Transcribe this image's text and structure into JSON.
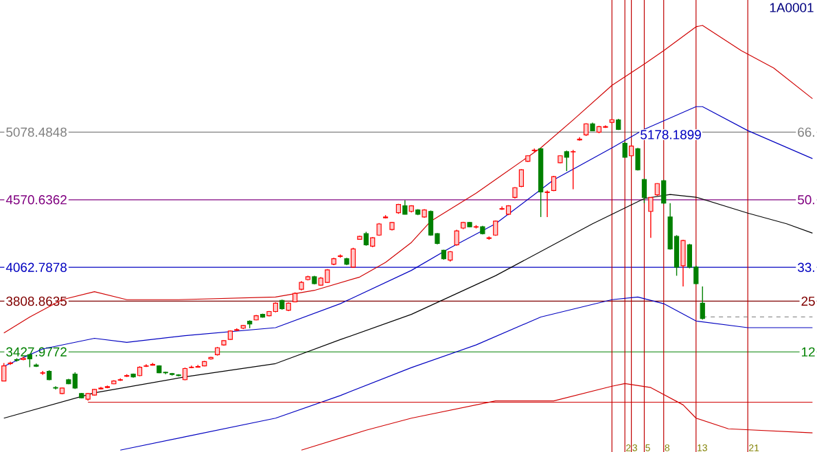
{
  "chart_data": {
    "type": "candlestick",
    "title": "1A0001",
    "categories": [
      null,
      null,
      null,
      null,
      null,
      null,
      null,
      null,
      null,
      null,
      null,
      null,
      null,
      null,
      null,
      null,
      null,
      null,
      null,
      null,
      null,
      null,
      null,
      null,
      null,
      null,
      null,
      null,
      null,
      null,
      null,
      null,
      null,
      null,
      null,
      null,
      null,
      null,
      null,
      null,
      null,
      null,
      null,
      null,
      null,
      null,
      null,
      null,
      null,
      null,
      null,
      null,
      null,
      null,
      null,
      null,
      null,
      null,
      null,
      null,
      null,
      null,
      null,
      null,
      null,
      null,
      null,
      null,
      null,
      null,
      null,
      null,
      null,
      null,
      null,
      null,
      null,
      null,
      null,
      null,
      null,
      null,
      null,
      null,
      null,
      null,
      null,
      null,
      null,
      null,
      null,
      null,
      null,
      null,
      null,
      null,
      null,
      null,
      null,
      null,
      null,
      null,
      null,
      null,
      null,
      null,
      null,
      null,
      null,
      null,
      null,
      null,
      null,
      null,
      null,
      null,
      null,
      null,
      null,
      null,
      null,
      null,
      null,
      null,
      null,
      null
    ],
    "ohlc": [
      [
        3209,
        3344,
        3209,
        3323
      ],
      [
        3340,
        3355,
        3330,
        3344
      ],
      [
        3370,
        3380,
        3355,
        3365
      ],
      [
        3370,
        3390,
        3365,
        3380
      ],
      [
        3407,
        3415,
        3313,
        3376
      ],
      [
        3330,
        3340,
        3315,
        3320
      ],
      [
        3268,
        3285,
        3255,
        3271
      ],
      [
        3282,
        3290,
        3215,
        3219
      ],
      [
        3160,
        3170,
        3145,
        3156
      ],
      [
        3115,
        3160,
        3110,
        3156
      ],
      [
        3219,
        3225,
        3185,
        3188
      ],
      [
        3261,
        3275,
        3150,
        3156
      ],
      [
        3115,
        3120,
        3080,
        3083
      ],
      [
        3073,
        3120,
        3062,
        3115
      ],
      [
        3104,
        3150,
        3100,
        3146
      ],
      [
        3150,
        3165,
        3145,
        3156
      ],
      [
        3160,
        3175,
        3155,
        3167
      ],
      [
        3188,
        3215,
        3185,
        3209
      ],
      [
        3215,
        3230,
        3210,
        3219
      ],
      [
        3245,
        3260,
        3240,
        3250
      ],
      [
        3261,
        3265,
        3235,
        3240
      ],
      [
        3250,
        3320,
        3245,
        3313
      ],
      [
        3320,
        3335,
        3315,
        3323
      ],
      [
        3328,
        3345,
        3325,
        3334
      ],
      [
        3323,
        3328,
        3268,
        3271
      ],
      [
        3275,
        3280,
        3260,
        3271
      ],
      [
        3265,
        3270,
        3250,
        3258
      ],
      [
        3255,
        3260,
        3245,
        3250
      ],
      [
        3219,
        3310,
        3215,
        3303
      ],
      [
        3310,
        3325,
        3305,
        3313
      ],
      [
        3313,
        3330,
        3310,
        3318
      ],
      [
        3323,
        3360,
        3320,
        3355
      ],
      [
        3375,
        3390,
        3370,
        3386
      ],
      [
        3407,
        3465,
        3400,
        3459
      ],
      [
        3480,
        3515,
        3475,
        3512
      ],
      [
        3522,
        3590,
        3518,
        3585
      ],
      [
        3590,
        3605,
        3585,
        3595
      ],
      [
        3606,
        3630,
        3600,
        3626
      ],
      [
        3658,
        3665,
        3606,
        3637
      ],
      [
        3668,
        3705,
        3665,
        3700
      ],
      [
        3710,
        3715,
        3685,
        3689
      ],
      [
        3700,
        3735,
        3695,
        3731
      ],
      [
        3731,
        3800,
        3725,
        3794
      ],
      [
        3815,
        3820,
        3745,
        3752
      ],
      [
        3741,
        3800,
        3735,
        3794
      ],
      [
        3804,
        3875,
        3800,
        3867
      ],
      [
        3898,
        3960,
        3890,
        3950
      ],
      [
        3971,
        4000,
        3965,
        3992
      ],
      [
        3992,
        4000,
        3935,
        3940
      ],
      [
        3929,
        3990,
        3925,
        3982
      ],
      [
        3950,
        4050,
        3945,
        4044
      ],
      [
        4086,
        4135,
        4080,
        4128
      ],
      [
        4145,
        4160,
        4135,
        4149
      ],
      [
        4128,
        4135,
        4080,
        4086
      ],
      [
        4065,
        4210,
        4060,
        4201
      ],
      [
        4274,
        4300,
        4270,
        4295
      ],
      [
        4316,
        4330,
        4225,
        4232
      ],
      [
        4222,
        4290,
        4215,
        4285
      ],
      [
        4305,
        4395,
        4300,
        4389
      ],
      [
        4435,
        4455,
        4430,
        4441
      ],
      [
        4347,
        4405,
        4340,
        4400
      ],
      [
        4473,
        4540,
        4465,
        4535
      ],
      [
        4525,
        4567,
        4460,
        4462
      ],
      [
        4483,
        4530,
        4475,
        4525
      ],
      [
        4494,
        4500,
        4455,
        4462
      ],
      [
        4441,
        4500,
        4435,
        4494
      ],
      [
        4483,
        4490,
        4300,
        4305
      ],
      [
        4316,
        4320,
        4235,
        4243
      ],
      [
        4191,
        4195,
        4120,
        4128
      ],
      [
        4117,
        4185,
        4107,
        4180
      ],
      [
        4232,
        4345,
        4225,
        4337
      ],
      [
        4358,
        4405,
        4350,
        4400
      ],
      [
        4400,
        4405,
        4365,
        4368
      ],
      [
        4365,
        4380,
        4355,
        4368
      ],
      [
        4368,
        4375,
        4310,
        4316
      ],
      [
        4280,
        4295,
        4270,
        4285
      ],
      [
        4305,
        4415,
        4300,
        4410
      ],
      [
        4500,
        4520,
        4495,
        4504
      ],
      [
        4462,
        4530,
        4455,
        4525
      ],
      [
        4588,
        4665,
        4580,
        4661
      ],
      [
        4671,
        4800,
        4665,
        4796
      ],
      [
        4859,
        4905,
        4855,
        4901
      ],
      [
        4940,
        4955,
        4930,
        4943
      ],
      [
        4953,
        4960,
        4441,
        4629
      ],
      [
        4625,
        4640,
        4441,
        4629
      ],
      [
        4640,
        4750,
        4635,
        4744
      ],
      [
        4849,
        4905,
        4845,
        4901
      ],
      [
        4932,
        4940,
        4786,
        4890
      ],
      [
        4930,
        4945,
        4650,
        4932
      ],
      [
        5020,
        5040,
        5015,
        5026
      ],
      [
        5058,
        5145,
        5050,
        5141
      ],
      [
        5141,
        5150,
        5085,
        5089
      ],
      [
        5078,
        5125,
        5070,
        5120
      ],
      [
        5115,
        5130,
        5110,
        5120
      ],
      [
        5152,
        5175,
        5145,
        5172
      ],
      [
        5170,
        5178.1899,
        5095,
        5099
      ],
      [
        4995,
        5005,
        4885,
        4890
      ],
      [
        4901,
        4980,
        4895,
        4974
      ],
      [
        4953,
        4960,
        4790,
        4796
      ],
      [
        4723,
        4730,
        4546,
        4588
      ],
      [
        4483,
        4590,
        4285,
        4588
      ],
      [
        4608,
        4695,
        4600,
        4692
      ],
      [
        4713,
        4720,
        4540,
        4546
      ],
      [
        4441,
        4545,
        4195,
        4201
      ],
      [
        4295,
        4305,
        4000,
        4065
      ],
      [
        4075,
        4270,
        3920,
        4264
      ],
      [
        4232,
        4240,
        4055,
        4065
      ],
      [
        4065,
        4075,
        3935,
        3940
      ],
      [
        3794,
        3919,
        3670,
        3679
      ],
      null,
      null,
      null,
      null,
      null,
      null,
      null,
      null,
      null,
      null,
      null,
      null,
      null,
      null,
      null,
      null,
      null
    ],
    "series": [
      {
        "type": "line",
        "color": "#d00000",
        "values": [
          3570,
          null,
          null,
          null,
          3690,
          null,
          null,
          null,
          null,
          3820,
          null,
          null,
          null,
          null,
          3880,
          null,
          null,
          null,
          null,
          3820,
          null,
          null,
          null,
          null,
          null,
          null,
          null,
          3820,
          null,
          null,
          null,
          null,
          null,
          null,
          null,
          null,
          null,
          null,
          null,
          null,
          null,
          null,
          3840,
          null,
          null,
          null,
          null,
          null,
          3890,
          null,
          null,
          null,
          null,
          null,
          null,
          3990,
          null,
          null,
          null,
          4100,
          null,
          null,
          null,
          4250,
          null,
          null,
          4410,
          null,
          null,
          null,
          null,
          null,
          null,
          4620,
          null,
          null,
          null,
          null,
          null,
          null,
          null,
          null,
          null,
          4960,
          null,
          null,
          null,
          null,
          5170,
          null,
          null,
          null,
          null,
          null,
          5430,
          null,
          null,
          null,
          null,
          5590,
          null,
          null,
          5690,
          null,
          null,
          null,
          null,
          5870,
          5880,
          null,
          null,
          null,
          null,
          null,
          5690,
          null,
          null,
          null,
          null,
          5560,
          null,
          null,
          null,
          null,
          null,
          5330
        ]
      },
      {
        "type": "line",
        "color": "#0000c0",
        "values": [
          3320,
          null,
          null,
          null,
          null,
          null,
          3450,
          null,
          null,
          null,
          null,
          null,
          null,
          null,
          3530,
          null,
          null,
          null,
          null,
          3500,
          null,
          null,
          null,
          null,
          null,
          null,
          null,
          null,
          3550,
          null,
          null,
          null,
          null,
          null,
          null,
          null,
          null,
          null,
          null,
          null,
          null,
          null,
          3610,
          null,
          null,
          null,
          null,
          null,
          null,
          null,
          null,
          null,
          3790,
          null,
          null,
          null,
          null,
          null,
          null,
          null,
          null,
          null,
          null,
          4040,
          null,
          null,
          null,
          null,
          null,
          4210,
          null,
          null,
          null,
          null,
          null,
          null,
          4390,
          null,
          null,
          null,
          null,
          null,
          null,
          null,
          null,
          4720,
          null,
          null,
          null,
          null,
          null,
          null,
          null,
          null,
          4960,
          null,
          null,
          null,
          null,
          5100,
          null,
          null,
          null,
          null,
          null,
          null,
          null,
          5270,
          5270,
          null,
          null,
          null,
          null,
          null,
          null,
          5090,
          null,
          null,
          null,
          null,
          null,
          null,
          null,
          null,
          null,
          4880
        ]
      },
      {
        "type": "line",
        "color": "#000000",
        "values": [
          2930,
          null,
          null,
          null,
          null,
          null,
          null,
          null,
          null,
          null,
          null,
          null,
          null,
          null,
          3120,
          null,
          null,
          null,
          null,
          null,
          null,
          null,
          null,
          null,
          null,
          null,
          null,
          null,
          3240,
          null,
          null,
          null,
          null,
          null,
          null,
          null,
          null,
          null,
          null,
          null,
          null,
          null,
          3340,
          null,
          null,
          null,
          null,
          null,
          null,
          null,
          null,
          null,
          3520,
          null,
          null,
          null,
          null,
          null,
          null,
          null,
          null,
          null,
          null,
          3710,
          null,
          null,
          null,
          null,
          null,
          null,
          null,
          null,
          null,
          null,
          null,
          null,
          4000,
          null,
          null,
          null,
          null,
          null,
          null,
          null,
          null,
          null,
          null,
          null,
          null,
          null,
          null,
          4390,
          null,
          null,
          null,
          null,
          null,
          null,
          null,
          4580,
          null,
          null,
          null,
          4610,
          null,
          null,
          null,
          4590,
          null,
          null,
          null,
          null,
          null,
          null,
          null,
          4470,
          null,
          null,
          null,
          null,
          null,
          4390,
          null,
          null,
          null,
          4320
        ]
      },
      {
        "type": "line",
        "color": "#0000c0",
        "values": [
          null,
          null,
          null,
          null,
          null,
          null,
          null,
          null,
          null,
          null,
          null,
          null,
          null,
          null,
          null,
          null,
          null,
          null,
          2690,
          null,
          null,
          null,
          null,
          null,
          null,
          null,
          null,
          null,
          2790,
          null,
          null,
          null,
          null,
          null,
          null,
          null,
          null,
          null,
          null,
          null,
          null,
          null,
          2930,
          null,
          null,
          null,
          null,
          null,
          null,
          null,
          null,
          null,
          3100,
          null,
          null,
          null,
          null,
          null,
          null,
          null,
          null,
          null,
          null,
          3310,
          null,
          null,
          null,
          null,
          null,
          null,
          null,
          null,
          null,
          3480,
          null,
          null,
          null,
          null,
          null,
          null,
          null,
          null,
          null,
          3690,
          null,
          null,
          null,
          null,
          null,
          null,
          null,
          null,
          null,
          null,
          3820,
          null,
          null,
          null,
          3840,
          null,
          null,
          null,
          3790,
          null,
          null,
          null,
          null,
          3660,
          null,
          null,
          null,
          null,
          null,
          null,
          null,
          3610,
          null,
          null,
          null,
          null,
          null,
          null,
          null,
          null,
          null,
          3610
        ]
      },
      {
        "type": "line",
        "color": "#d00000",
        "values": [
          null,
          null,
          null,
          null,
          null,
          null,
          null,
          null,
          null,
          null,
          null,
          null,
          null,
          null,
          null,
          null,
          null,
          null,
          null,
          null,
          null,
          null,
          null,
          null,
          null,
          null,
          null,
          null,
          null,
          null,
          null,
          null,
          null,
          null,
          null,
          null,
          null,
          null,
          null,
          null,
          null,
          null,
          null,
          null,
          null,
          null,
          2690,
          null,
          null,
          null,
          null,
          null,
          null,
          null,
          null,
          null,
          2840,
          null,
          null,
          null,
          null,
          null,
          null,
          2930,
          null,
          null,
          null,
          null,
          null,
          null,
          null,
          null,
          null,
          null,
          null,
          null,
          3060,
          null,
          null,
          null,
          null,
          null,
          null,
          null,
          null,
          3060,
          null,
          null,
          null,
          null,
          null,
          null,
          null,
          null,
          3170,
          null,
          3190,
          null,
          null,
          null,
          3160,
          null,
          null,
          null,
          null,
          3030,
          null,
          2930,
          null,
          null,
          null,
          null,
          2850,
          null,
          null,
          null,
          null,
          null,
          null,
          null,
          null,
          null,
          null,
          null,
          null,
          2820
        ]
      },
      {
        "type": "line",
        "color": "#d00000",
        "values": [
          null,
          null,
          null,
          null,
          null,
          null,
          null,
          null,
          null,
          null,
          null,
          null,
          null,
          3050,
          null,
          null,
          null,
          null,
          null,
          null,
          null,
          null,
          null,
          null,
          null,
          null,
          null,
          null,
          null,
          null,
          null,
          null,
          null,
          null,
          null,
          null,
          null,
          null,
          null,
          null,
          null,
          null,
          null,
          null,
          null,
          null,
          null,
          null,
          null,
          null,
          null,
          null,
          null,
          null,
          null,
          null,
          null,
          null,
          null,
          null,
          null,
          null,
          null,
          null,
          null,
          null,
          null,
          null,
          null,
          null,
          null,
          null,
          null,
          null,
          null,
          null,
          null,
          null,
          null,
          null,
          null,
          null,
          null,
          null,
          null,
          null,
          null,
          null,
          null,
          null,
          null,
          null,
          null,
          null,
          null,
          null,
          null,
          null,
          null,
          null,
          null,
          null,
          null,
          null,
          null,
          null,
          null,
          null,
          null,
          null,
          null,
          null,
          null,
          null,
          null,
          null,
          null,
          null,
          null,
          null,
          null,
          null,
          null,
          null,
          null,
          3050
        ]
      },
      {
        "type": "line",
        "color": "#909090",
        "line_style": "dashed",
        "values": [
          null,
          null,
          null,
          null,
          null,
          null,
          null,
          null,
          null,
          null,
          null,
          null,
          null,
          null,
          null,
          null,
          null,
          null,
          null,
          null,
          null,
          null,
          null,
          null,
          null,
          null,
          null,
          null,
          null,
          null,
          null,
          null,
          null,
          null,
          null,
          null,
          null,
          null,
          null,
          null,
          null,
          null,
          null,
          null,
          null,
          null,
          null,
          null,
          null,
          null,
          null,
          null,
          null,
          null,
          null,
          null,
          null,
          null,
          null,
          null,
          null,
          null,
          null,
          null,
          null,
          null,
          null,
          null,
          null,
          null,
          null,
          null,
          null,
          null,
          null,
          null,
          null,
          null,
          null,
          null,
          null,
          null,
          null,
          null,
          null,
          null,
          null,
          null,
          null,
          null,
          null,
          null,
          null,
          null,
          null,
          null,
          null,
          null,
          null,
          null,
          null,
          null,
          null,
          null,
          null,
          null,
          null,
          null,
          3690,
          null,
          null,
          null,
          null,
          null,
          null,
          null,
          null,
          null,
          null,
          null,
          null,
          null,
          null,
          null,
          null,
          3690
        ]
      }
    ],
    "ref_lines": [
      {
        "axis": "y",
        "value": 5078.4848,
        "color": "#808080"
      },
      {
        "axis": "y",
        "value": 4570.6362,
        "color": "#800080"
      },
      {
        "axis": "y",
        "value": 4062.7878,
        "color": "#0000c0"
      },
      {
        "axis": "y",
        "value": 3808.8635,
        "color": "#800000"
      },
      {
        "axis": "y",
        "value": 3427.9772,
        "color": "#008000"
      }
    ],
    "annotations": [
      {
        "text": "5178.1899",
        "y": 5178.1899
      },
      {
        "text": "66.",
        "y": 5078.4848
      },
      {
        "text": "50.",
        "y": 4570.6362
      },
      {
        "text": "33.",
        "y": 4062.7878
      },
      {
        "text": "25",
        "y": 3808.8635
      },
      {
        "text": "12",
        "y": 3427.9772
      },
      "2",
      "3",
      "5",
      "8",
      "13",
      "21"
    ],
    "ylim": [
      2676,
      6071
    ],
    "yticks": [
      {
        "value": 5078.4848,
        "label": "5078.4848"
      },
      {
        "value": 4570.6362,
        "label": "4570.6362"
      },
      {
        "value": 4062.7878,
        "label": "4062.7878"
      },
      {
        "value": 3808.8635,
        "label": "3808.8635"
      },
      {
        "value": 3427.9772,
        "label": "3427.9772"
      }
    ],
    "tick_labels": "y"
  }
}
